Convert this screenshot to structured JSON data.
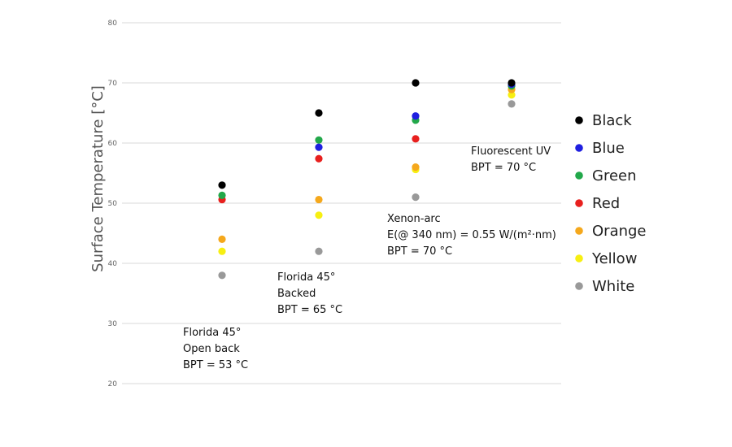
{
  "chart_data": {
    "type": "scatter",
    "title": "",
    "xlabel": "",
    "ylabel": "Surface Temperature [°C]",
    "ylim": [
      20,
      80
    ],
    "yticks": [
      20,
      30,
      40,
      50,
      60,
      70,
      80
    ],
    "grid": true,
    "legend_position": "right",
    "categories": [
      "Florida 45° Open back",
      "Florida 45° Backed",
      "Xenon-arc",
      "Fluorescent UV"
    ],
    "series": [
      {
        "name": "Black",
        "color": "#000000",
        "values": [
          53,
          65,
          70,
          70
        ]
      },
      {
        "name": "Blue",
        "color": "#1f1fe0",
        "values": [
          null,
          59.3,
          64.5,
          69.8
        ]
      },
      {
        "name": "Green",
        "color": "#22a84a",
        "values": [
          51.3,
          60.5,
          63.8,
          69.5
        ]
      },
      {
        "name": "Red",
        "color": "#e8201e",
        "values": [
          50.6,
          57.4,
          60.7,
          69.6
        ]
      },
      {
        "name": "Orange",
        "color": "#f5a81c",
        "values": [
          44,
          50.6,
          56,
          68.9
        ]
      },
      {
        "name": "Yellow",
        "color": "#f7ef12",
        "values": [
          42,
          48,
          55.6,
          68
        ]
      },
      {
        "name": "White",
        "color": "#999999",
        "values": [
          38,
          42,
          51,
          66.5
        ]
      }
    ],
    "annotations": [
      {
        "lines": [
          "Florida 45°",
          "Open back",
          "BPT = 53 °C"
        ]
      },
      {
        "lines": [
          "Florida 45°",
          "Backed",
          "BPT = 65 °C"
        ]
      },
      {
        "lines": [
          "Xenon-arc",
          "E(@ 340 nm) = 0.55 W/(m²·nm)",
          "BPT = 70 °C"
        ]
      },
      {
        "lines": [
          "Fluorescent UV",
          "BPT = 70 °C"
        ]
      }
    ]
  }
}
